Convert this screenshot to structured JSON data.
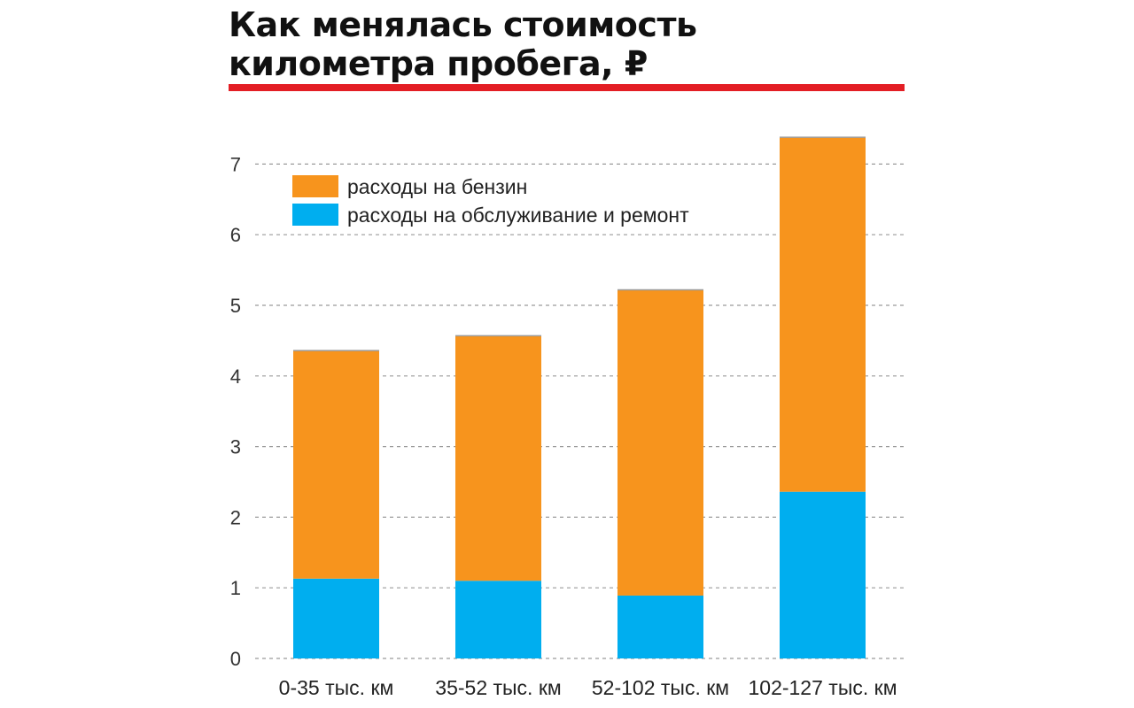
{
  "chart_data": {
    "type": "bar",
    "stacked": true,
    "title": "Как менялась стоимость километра пробега, ₽",
    "xlabel": "",
    "ylabel": "",
    "categories": [
      "0-35 тыс. км",
      "35-52 тыс. км",
      "52-102 тыс. км",
      "102-127 тыс. км"
    ],
    "series": [
      {
        "name": "расходы на обслуживание и ремонт",
        "color": "#00aeef",
        "values": [
          1.13,
          1.1,
          0.89,
          2.36
        ]
      },
      {
        "name": "расходы на бензин",
        "color": "#f7941d",
        "values": [
          3.23,
          3.47,
          4.33,
          5.02
        ]
      }
    ],
    "legend_order": [
      1,
      0
    ],
    "ylim": [
      0,
      7.4
    ],
    "yticks": [
      0,
      1,
      2,
      3,
      4,
      5,
      6,
      7
    ],
    "grid": true,
    "legend_position": "top-left",
    "accent_color": "#e31e24"
  }
}
